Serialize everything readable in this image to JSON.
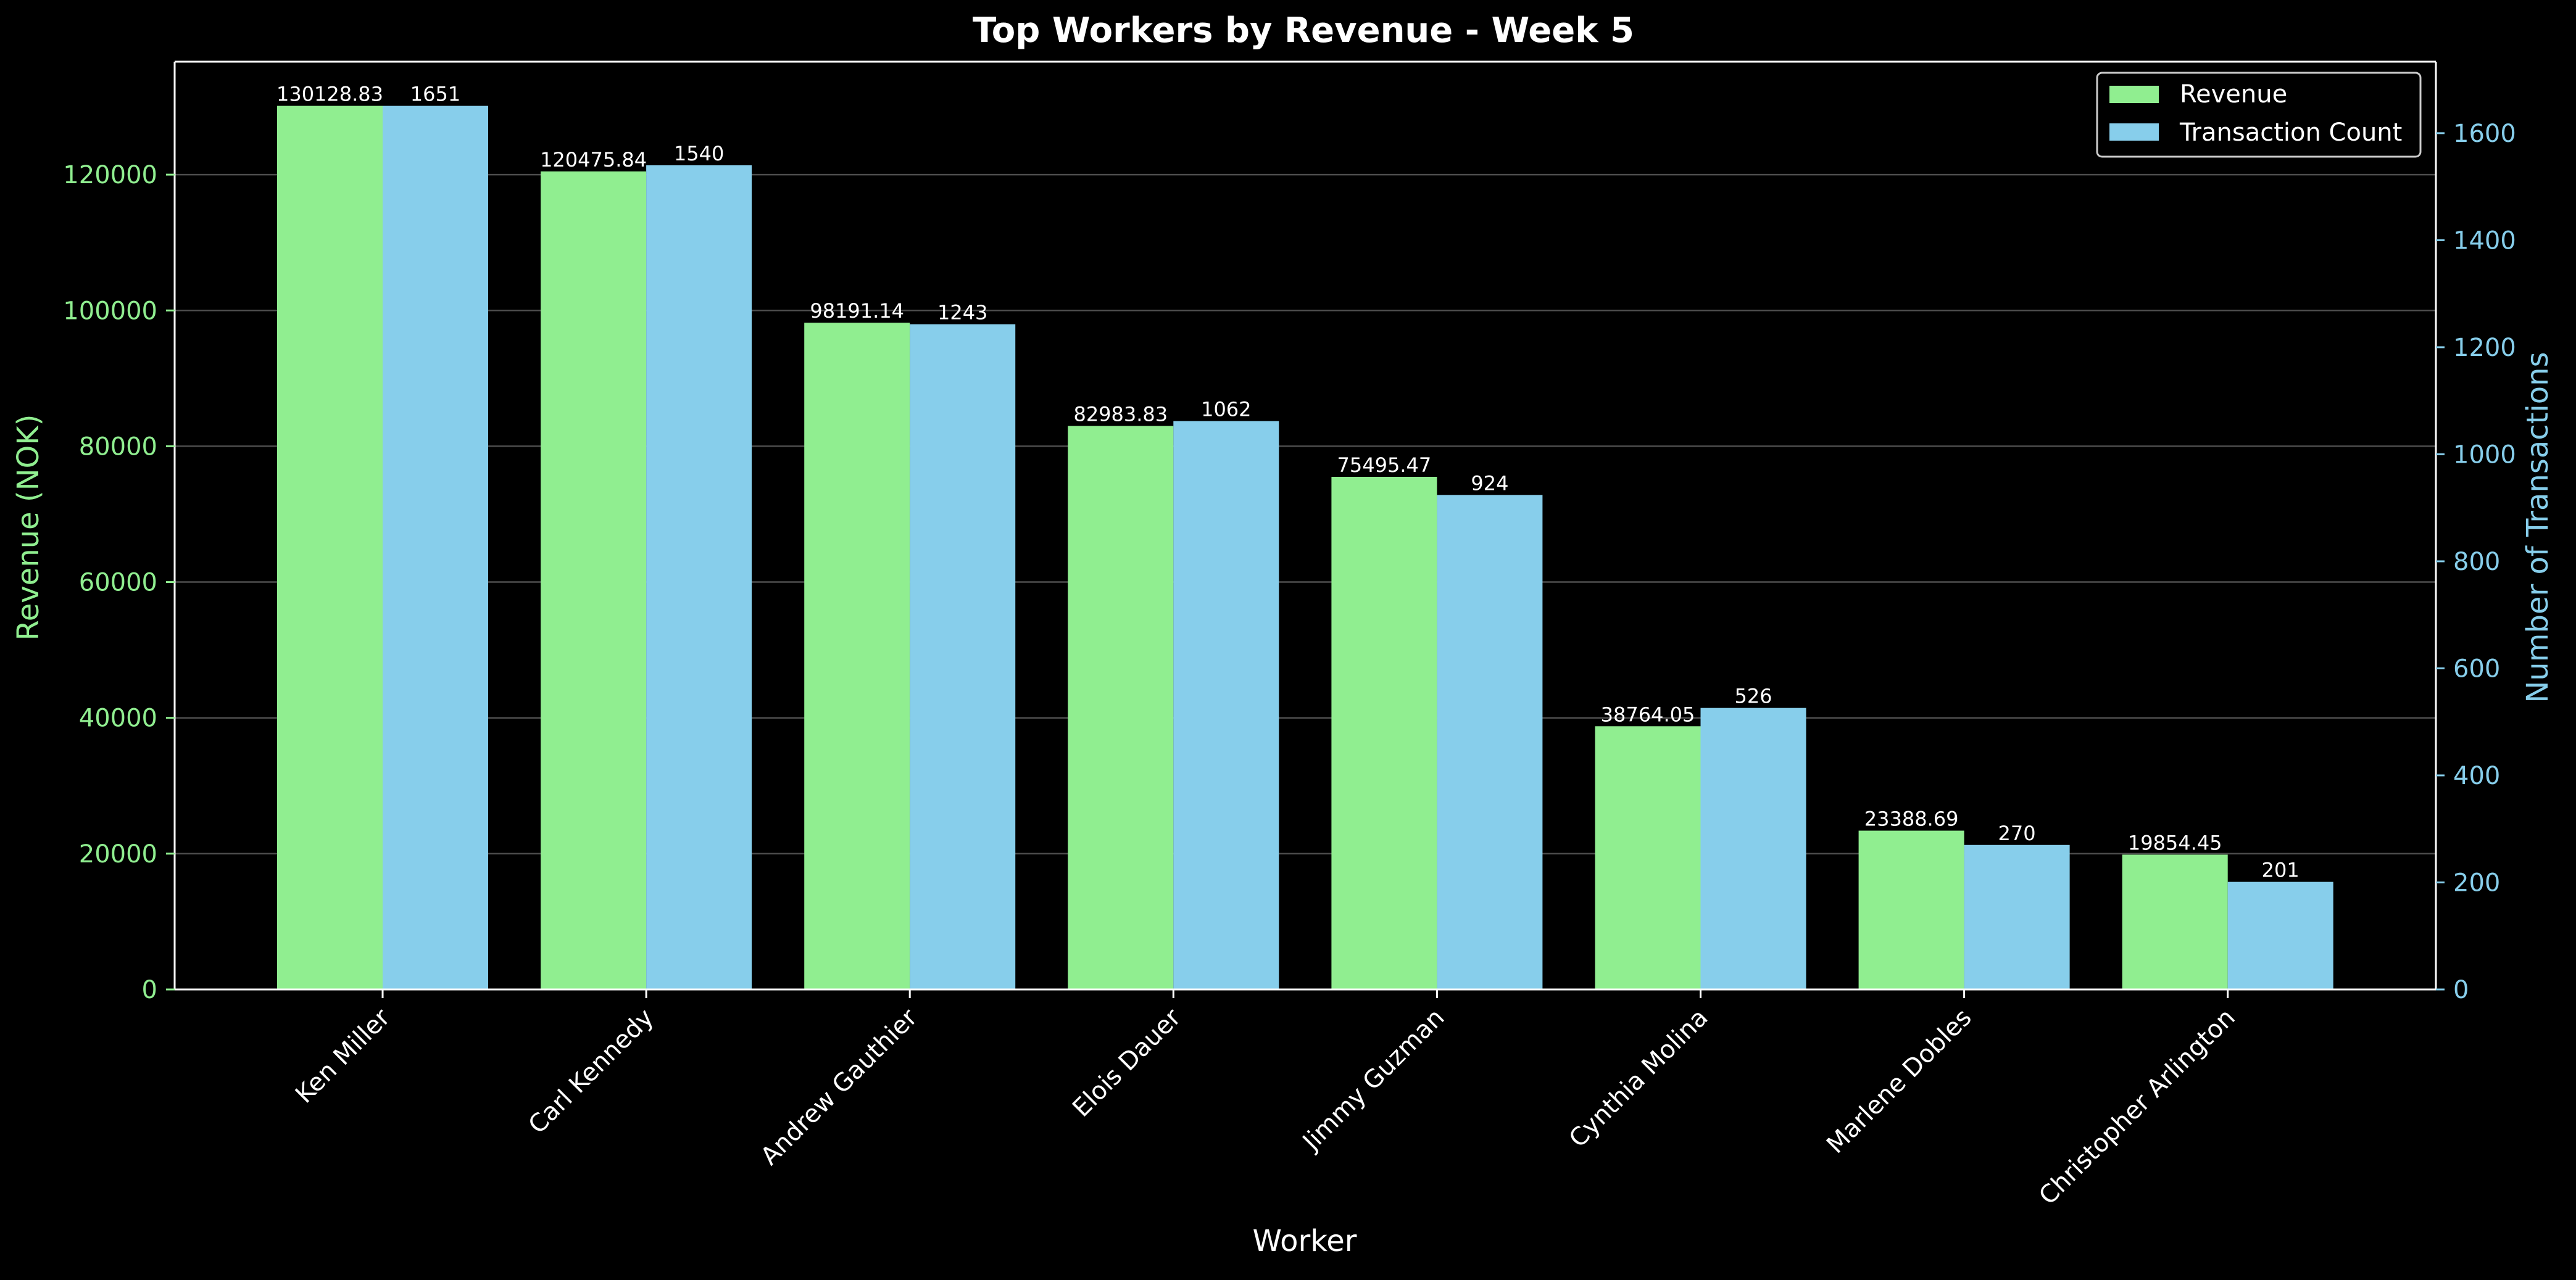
{
  "chart_data": {
    "type": "bar",
    "title": "Top Workers by Revenue - Week 5",
    "xlabel": "Worker",
    "ylabel_left": "Revenue (NOK)",
    "ylabel_right": "Number of Transactions",
    "categories": [
      "Ken Miller",
      "Carl Kennedy",
      "Andrew Gauthier",
      "Elois Dauer",
      "Jimmy Guzman",
      "Cynthia Molina",
      "Marlene Dobles",
      "Christopher Arlington"
    ],
    "series": [
      {
        "name": "Revenue",
        "axis": "left",
        "color": "#90ee90",
        "values": [
          130128.83,
          120475.84,
          98191.14,
          82983.83,
          75495.47,
          38764.05,
          23388.69,
          19854.45
        ],
        "labels": [
          "130128.83",
          "120475.84",
          "98191.14",
          "82983.83",
          "75495.47",
          "38764.05",
          "23388.69",
          "19854.45"
        ]
      },
      {
        "name": "Transaction Count",
        "axis": "right",
        "color": "#87ceeb",
        "values": [
          1651,
          1540,
          1243,
          1062,
          924,
          526,
          270,
          201
        ],
        "labels": [
          "1651",
          "1540",
          "1243",
          "1062",
          "924",
          "526",
          "270",
          "201"
        ]
      }
    ],
    "ylim_left": [
      0,
      136635
    ],
    "ylim_right": [
      0,
      1733.55
    ],
    "yticks_left": [
      0,
      20000,
      40000,
      60000,
      80000,
      100000,
      120000
    ],
    "yticks_right": [
      0,
      200,
      400,
      600,
      800,
      1000,
      1200,
      1400,
      1600
    ],
    "grid": true,
    "legend_position": "top-right",
    "background": "#000000",
    "left_axis_color": "#90ee90",
    "right_axis_color": "#87ceeb",
    "text_color": "#ffffff"
  }
}
